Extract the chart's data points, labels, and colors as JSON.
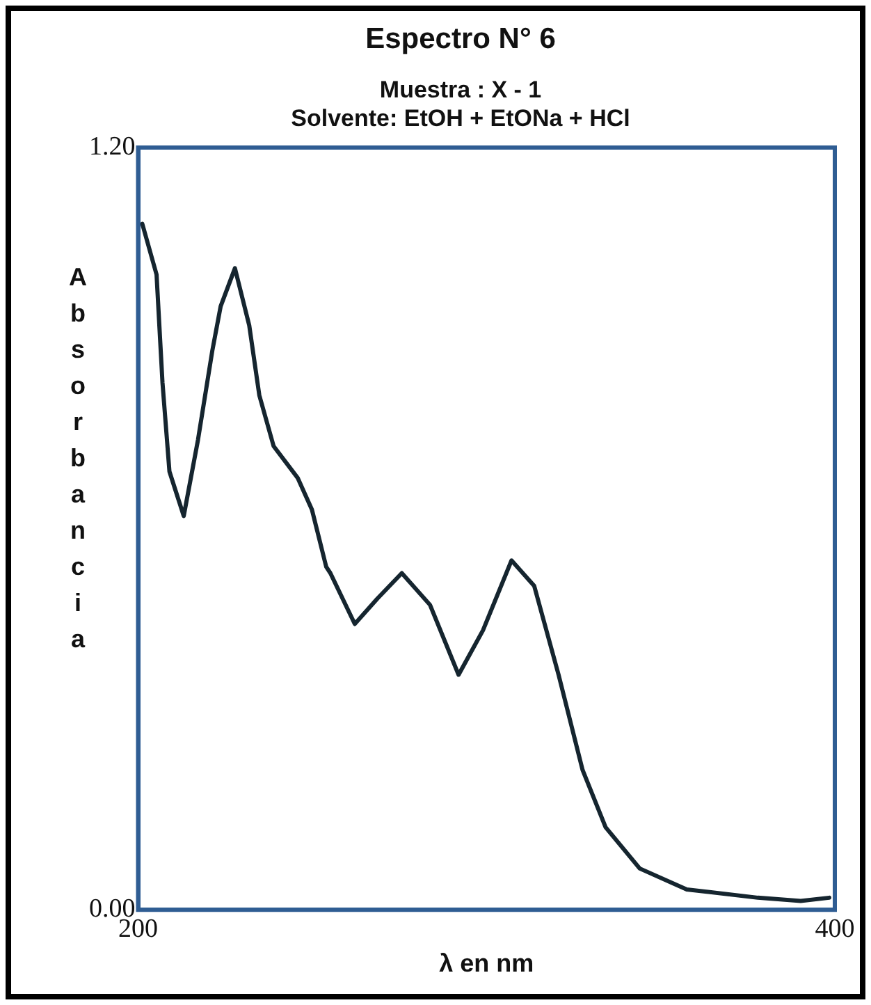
{
  "chart_data": {
    "type": "line",
    "title": "Espectro N° 6",
    "subtitle": "Muestra : X - 1\nSolvente: EtOH + EtONa + HCl",
    "xlabel": "λ en nm",
    "ylabel": "Absorbancia",
    "x": [
      201.2,
      205.3,
      207.0,
      209.0,
      213.1,
      217.2,
      221.3,
      223.7,
      227.8,
      231.9,
      234.8,
      238.9,
      245.8,
      249.9,
      254.0,
      255.2,
      262.2,
      268.7,
      275.7,
      283.8,
      292.0,
      299.0,
      307.2,
      313.7,
      320.7,
      327.6,
      334.2,
      344.0,
      357.5,
      377.9,
      390.2,
      398.4
    ],
    "values": [
      1.08,
      1.0,
      0.83,
      0.69,
      0.62,
      0.74,
      0.88,
      0.95,
      1.01,
      0.92,
      0.81,
      0.73,
      0.68,
      0.63,
      0.54,
      0.53,
      0.45,
      0.49,
      0.53,
      0.48,
      0.37,
      0.44,
      0.55,
      0.51,
      0.37,
      0.22,
      0.13,
      0.065,
      0.032,
      0.019,
      0.014,
      0.019
    ],
    "color": "#15252f",
    "xlim": [
      200,
      400
    ],
    "xticks": [
      200,
      400
    ],
    "ylim": [
      0,
      1.2
    ],
    "yticks": [
      {
        "value": 0,
        "label": "0.00"
      },
      {
        "value": 1.2,
        "label": "1.20"
      }
    ],
    "legend": false,
    "marker": "none",
    "line_style": "solid"
  }
}
